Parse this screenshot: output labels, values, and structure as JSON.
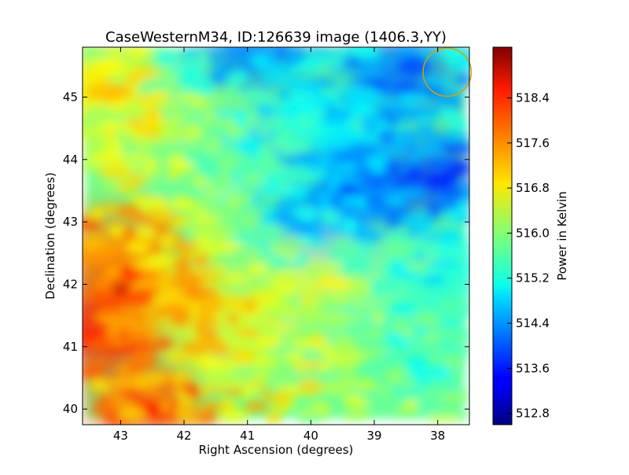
{
  "chart_data": {
    "type": "heatmap",
    "title": "CaseWesternM34, ID:126639 image (1406.3,YY)",
    "xlabel": "Right Ascension (degrees)",
    "ylabel": "Declination (degrees)",
    "xlim": [
      43.6,
      37.5
    ],
    "ylim": [
      39.75,
      45.8
    ],
    "x_ticks": [
      "43",
      "42",
      "41",
      "40",
      "39",
      "38"
    ],
    "y_ticks": [
      "40",
      "41",
      "42",
      "43",
      "44",
      "45"
    ],
    "colorbar": {
      "label": "Power in Kelvin",
      "range": [
        512.6,
        519.3
      ],
      "ticks": [
        "518.4",
        "517.6",
        "516.8",
        "516.0",
        "515.2",
        "514.4",
        "513.6",
        "512.8"
      ],
      "colormap": "jet"
    },
    "regions": [
      {
        "ra": 42.9,
        "dec": 41.9,
        "value": 518.6
      },
      {
        "ra": 43.3,
        "dec": 41.2,
        "value": 518.3
      },
      {
        "ra": 42.6,
        "dec": 40.1,
        "value": 517.9
      },
      {
        "ra": 43.1,
        "dec": 42.6,
        "value": 517.6
      },
      {
        "ra": 42.0,
        "dec": 41.8,
        "value": 517.0
      },
      {
        "ra": 41.2,
        "dec": 41.0,
        "value": 516.5
      },
      {
        "ra": 40.0,
        "dec": 42.0,
        "value": 516.6
      },
      {
        "ra": 42.8,
        "dec": 44.5,
        "value": 516.6
      },
      {
        "ra": 43.3,
        "dec": 45.2,
        "value": 516.9
      },
      {
        "ra": 38.5,
        "dec": 41.0,
        "value": 515.6
      },
      {
        "ra": 39.5,
        "dec": 44.5,
        "value": 515.1
      },
      {
        "ra": 38.3,
        "dec": 43.7,
        "value": 513.7
      },
      {
        "ra": 39.3,
        "dec": 43.6,
        "value": 514.0
      },
      {
        "ra": 38.6,
        "dec": 45.4,
        "value": 514.1
      },
      {
        "ra": 40.9,
        "dec": 45.7,
        "value": 514.3
      },
      {
        "ra": 39.8,
        "dec": 43.0,
        "value": 514.6
      },
      {
        "ra": 37.9,
        "dec": 42.2,
        "value": 515.3
      }
    ],
    "annotation": {
      "shape": "circle",
      "ra": 37.85,
      "dec": 45.4,
      "radius_deg": 0.38,
      "color": "#c8a800"
    }
  }
}
